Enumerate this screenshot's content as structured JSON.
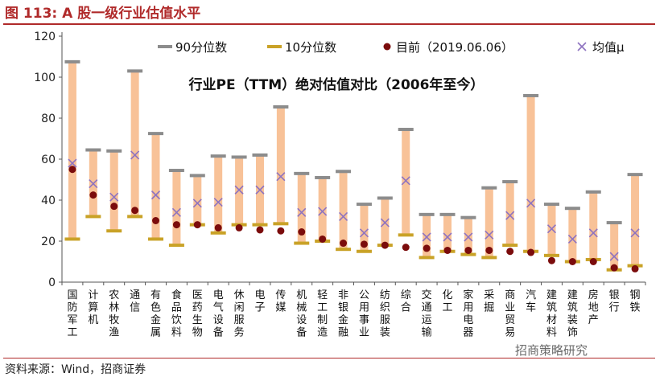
{
  "header": {
    "figure_title": "图 113:  A 股一级行业估值水平"
  },
  "footer": {
    "source": "资料来源：Wind，招商证券",
    "watermark": "招商策略研究"
  },
  "chart_data": {
    "type": "range-bar",
    "subtitle": "行业PE（TTM）绝对估值对比（2006年至今）",
    "ylim": [
      0,
      120
    ],
    "yticks": [
      0,
      20,
      40,
      60,
      80,
      100,
      120
    ],
    "legend_position": "top",
    "legend": {
      "p90": "90分位数",
      "p10": "10分位数",
      "current": "目前（2019.06.06）",
      "mean": "均值μ"
    },
    "colors": {
      "range": "#f8c298",
      "p90": "#8c8c8c",
      "p10": "#c9a227",
      "current": "#7b0c0c",
      "mean": "#8e73c0",
      "axis": "#555555",
      "brand": "#b02a2a"
    },
    "categories": [
      "国防军工",
      "计算机",
      "农林牧渔",
      "通信",
      "有色金属",
      "食品饮料",
      "医药生物",
      "电气设备",
      "休闲服务",
      "电子",
      "传媒",
      "机械设备",
      "轻工制造",
      "非银金融",
      "公用事业",
      "纺织服装",
      "综合",
      "交通运输",
      "化工",
      "家用电器",
      "采掘",
      "商业贸易",
      "汽车",
      "建筑材料",
      "建筑装饰",
      "房地产",
      "银行",
      "钢铁"
    ],
    "series": {
      "p90": [
        107.5,
        64.5,
        64,
        103,
        72.5,
        54.5,
        52,
        61.5,
        61,
        62,
        85.5,
        53,
        51,
        54,
        38,
        41,
        74.5,
        33,
        33,
        31.5,
        46,
        49,
        91,
        38,
        36,
        44,
        29,
        52.5
      ],
      "p10": [
        21,
        32,
        25,
        32,
        21,
        18,
        28,
        24,
        28,
        28,
        28.5,
        19,
        20,
        16,
        15,
        18,
        23,
        12,
        15,
        13.5,
        12,
        18,
        15,
        13,
        10,
        11,
        6,
        8
      ],
      "current": [
        55,
        42.5,
        37,
        35,
        30,
        28,
        28,
        26.5,
        26.5,
        25.5,
        25,
        24.5,
        21,
        19,
        18.5,
        18,
        17,
        16.5,
        15.5,
        15.5,
        15.5,
        15,
        14.5,
        10.5,
        10,
        10,
        7,
        6.5
      ],
      "mean": [
        58,
        48,
        41.5,
        62,
        42.5,
        34,
        38.5,
        39,
        45,
        45,
        51.5,
        34,
        34.5,
        32,
        24,
        29,
        49.5,
        22,
        22,
        22,
        23,
        32.5,
        38.5,
        26,
        21,
        24,
        12.5,
        24
      ]
    }
  }
}
